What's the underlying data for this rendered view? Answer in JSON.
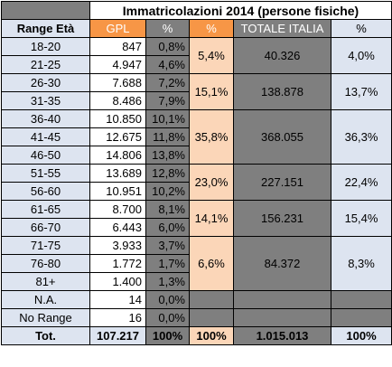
{
  "title": "Immatricolazioni 2014 (persone fisiche)",
  "headers": {
    "range": "Range Età",
    "gpl": "GPL",
    "pct": "%",
    "group_pct": "%",
    "totale": "TOTALE ITALIA",
    "italia_pct": "%"
  },
  "rows": [
    {
      "range": "18-20",
      "gpl": "847",
      "pct": "0,8%"
    },
    {
      "range": "21-25",
      "gpl": "4.947",
      "pct": "4,6%"
    },
    {
      "range": "26-30",
      "gpl": "7.688",
      "pct": "7,2%"
    },
    {
      "range": "31-35",
      "gpl": "8.486",
      "pct": "7,9%"
    },
    {
      "range": "36-40",
      "gpl": "10.850",
      "pct": "10,1%"
    },
    {
      "range": "41-45",
      "gpl": "12.675",
      "pct": "11,8%"
    },
    {
      "range": "46-50",
      "gpl": "14.806",
      "pct": "13,8%"
    },
    {
      "range": "51-55",
      "gpl": "13.689",
      "pct": "12,8%"
    },
    {
      "range": "56-60",
      "gpl": "10.951",
      "pct": "10,2%"
    },
    {
      "range": "61-65",
      "gpl": "8.700",
      "pct": "8,1%"
    },
    {
      "range": "66-70",
      "gpl": "6.443",
      "pct": "6,0%"
    },
    {
      "range": "71-75",
      "gpl": "3.933",
      "pct": "3,7%"
    },
    {
      "range": "76-80",
      "gpl": "1.772",
      "pct": "1,7%"
    },
    {
      "range": "81+",
      "gpl": "1.400",
      "pct": "1,3%"
    },
    {
      "range": "N.A.",
      "gpl": "14",
      "pct": "0,0%"
    },
    {
      "range": "No Range",
      "gpl": "16",
      "pct": "0,0%"
    }
  ],
  "groups": [
    {
      "pct": "5,4%",
      "totale": "40.326",
      "italia_pct": "4,0%"
    },
    {
      "pct": "15,1%",
      "totale": "138.878",
      "italia_pct": "13,7%"
    },
    {
      "pct": "35,8%",
      "totale": "368.055",
      "italia_pct": "36,3%"
    },
    {
      "pct": "23,0%",
      "totale": "227.151",
      "italia_pct": "22,4%"
    },
    {
      "pct": "14,1%",
      "totale": "156.231",
      "italia_pct": "15,4%"
    },
    {
      "pct": "6,6%",
      "totale": "84.372",
      "italia_pct": "8,3%"
    }
  ],
  "footer": {
    "label": "Tot.",
    "gpl": "107.217",
    "pct": "100%",
    "group_pct": "100%",
    "totale": "1.015.013",
    "italia_pct": "100%"
  },
  "colors": {
    "orange_header": "#f79646",
    "orange_light": "#fbd6b8",
    "gray": "#7f7f7f",
    "blue_light": "#dde4f0"
  }
}
